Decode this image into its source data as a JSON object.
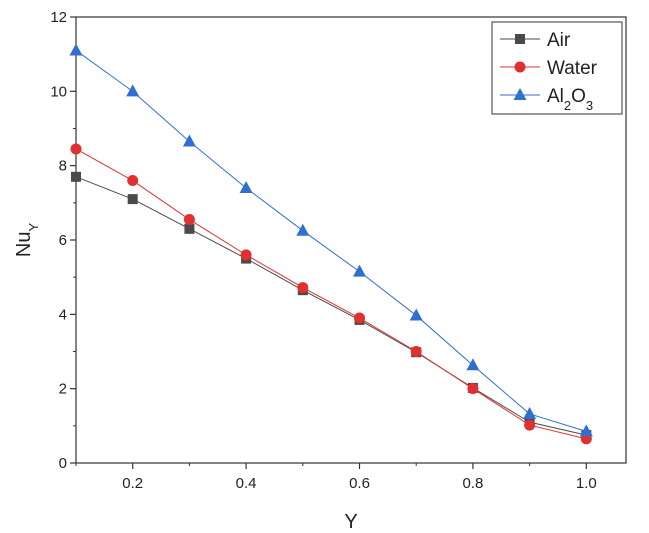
{
  "chart_data": {
    "type": "line",
    "title": "",
    "xlabel": "Y",
    "ylabel": {
      "main": "Nu",
      "sub": "Y"
    },
    "xlim": [
      0.1,
      1.07
    ],
    "ylim": [
      0,
      12
    ],
    "xticks": [
      0.2,
      0.4,
      0.6,
      0.8,
      1.0
    ],
    "xtick_labels": [
      "0.2",
      "0.4",
      "0.6",
      "0.8",
      "1.0"
    ],
    "yticks": [
      0,
      2,
      4,
      6,
      8,
      10,
      12
    ],
    "ytick_labels": [
      "0",
      "2",
      "4",
      "6",
      "8",
      "10",
      "12"
    ],
    "grid": false,
    "legend_position": "top-right",
    "x": [
      0.1,
      0.2,
      0.3,
      0.4,
      0.5,
      0.6,
      0.7,
      0.8,
      0.9,
      1.0
    ],
    "series": [
      {
        "name": "Air",
        "marker": "square",
        "color": "#4a4a4a",
        "values": [
          7.7,
          7.1,
          6.3,
          5.5,
          4.65,
          3.85,
          2.98,
          2.02,
          1.1,
          0.75
        ]
      },
      {
        "name": "Water",
        "marker": "circle",
        "color": "#e03030",
        "values": [
          8.45,
          7.6,
          6.55,
          5.6,
          4.72,
          3.9,
          3.0,
          2.0,
          1.02,
          0.65
        ]
      },
      {
        "name": "Al2O3",
        "marker": "triangle",
        "color": "#2e6fd0",
        "label_parts": [
          {
            "t": "Al",
            "sub": false
          },
          {
            "t": "2",
            "sub": true
          },
          {
            "t": "O",
            "sub": false
          },
          {
            "t": "3",
            "sub": true
          }
        ],
        "values": [
          11.1,
          10.0,
          8.65,
          7.4,
          6.25,
          5.15,
          3.97,
          2.63,
          1.32,
          0.85
        ]
      }
    ]
  }
}
